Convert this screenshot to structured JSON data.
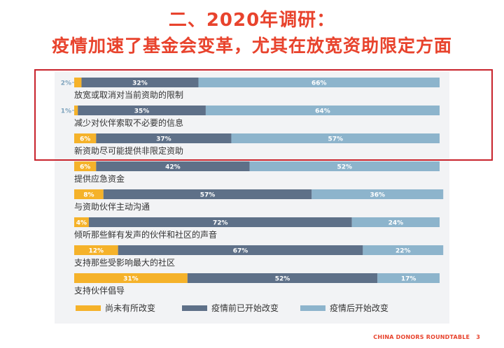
{
  "slide": {
    "title_line_1": "二、2020年调研：",
    "title_line_2": "疫情加速了基金会变革，尤其在放宽资助限定方面",
    "footer_org": "CHINA DONORS ROUNDTABLE",
    "page_number": "3"
  },
  "colors": {
    "title": "#e8432d",
    "highlight_border": "#c8232c",
    "not_changed": "#f5b22a",
    "changed_before": "#5e7088",
    "changed_after": "#8db4cc"
  },
  "chart_data": {
    "type": "bar",
    "orientation": "horizontal",
    "stacked": true,
    "units": "%",
    "xlim": [
      0,
      100
    ],
    "legend_position": "bottom",
    "categories": [
      "放宽或取消对当前资助的限制",
      "减少对伙伴索取不必要的信息",
      "新资助尽可能提供非限定资助",
      "提供应急资金",
      "与资助伙伴主动沟通",
      "倾听那些鲜有发声的伙伴和社区的声音",
      "支持那些受影响最大的社区",
      "支持伙伴倡导"
    ],
    "series": [
      {
        "name": "尚未有所改变",
        "color": "#f5b22a",
        "values": [
          2,
          1,
          6,
          6,
          8,
          4,
          12,
          31
        ]
      },
      {
        "name": "疫情前已开始改变",
        "color": "#5e7088",
        "values": [
          32,
          35,
          37,
          42,
          57,
          72,
          67,
          52
        ]
      },
      {
        "name": "疫情后开始改变",
        "color": "#8db4cc",
        "values": [
          66,
          64,
          57,
          52,
          36,
          24,
          22,
          17
        ]
      }
    ],
    "data_labels": [
      [
        "2%",
        "32%",
        "66%"
      ],
      [
        "1%",
        "35%",
        "64%"
      ],
      [
        "6%",
        "37%",
        "57%"
      ],
      [
        "6%",
        "42%",
        "52%"
      ],
      [
        "8%",
        "57%",
        "36%"
      ],
      [
        "4%",
        "72%",
        "24%"
      ],
      [
        "12%",
        "67%",
        "22%"
      ],
      [
        "31%",
        "52%",
        "17%"
      ]
    ],
    "outside_label_rows": [
      0,
      1
    ],
    "highlighted_rows": [
      0,
      1,
      2
    ]
  }
}
